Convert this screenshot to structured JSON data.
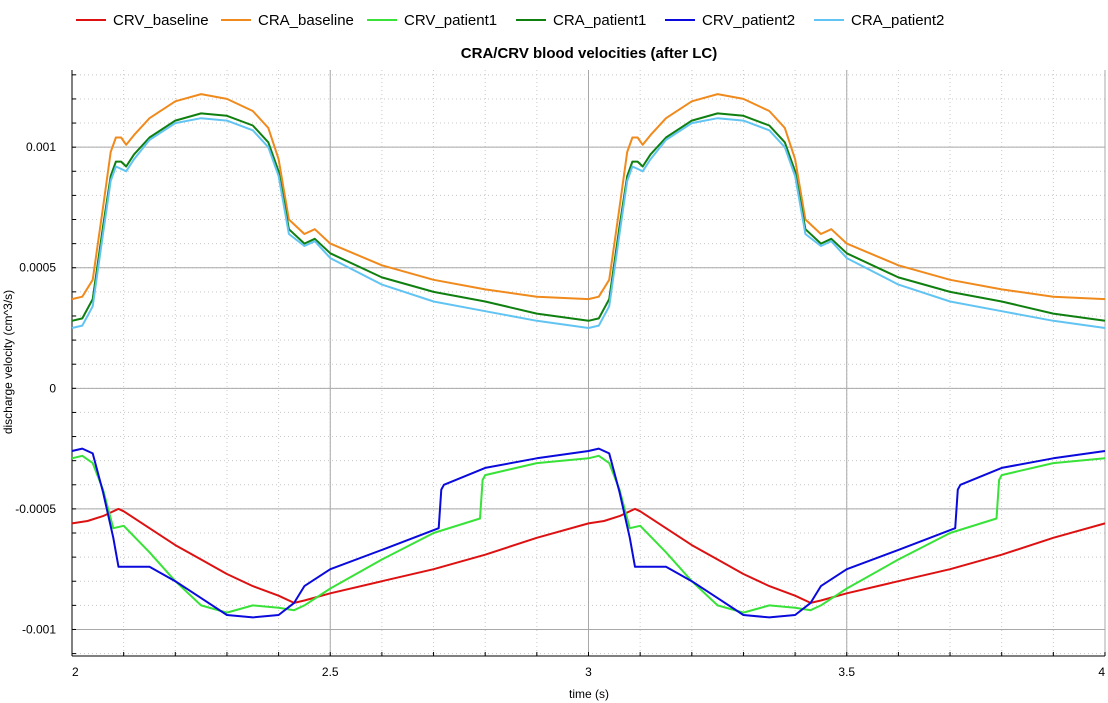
{
  "chart_data": {
    "type": "line",
    "title": "CRA/CRV blood velocities (after LC)",
    "xlabel": "time (s)",
    "ylabel": "discharge velocity (cm^3/s)",
    "xlim": [
      2,
      4
    ],
    "ylim": [
      -0.00111,
      0.00132
    ],
    "x_ticks": [
      2,
      2.5,
      3,
      3.5,
      4
    ],
    "x_tick_labels": [
      "2",
      "2.5",
      "3",
      "3.5",
      "4"
    ],
    "y_ticks": [
      -0.001,
      -0.0005,
      0,
      0.0005,
      0.001
    ],
    "y_tick_labels": [
      "-0.001",
      "-0.0005",
      "0",
      "0.0005",
      "0.001"
    ],
    "grid": true,
    "legend_position": "top",
    "period": 1.0,
    "series": [
      {
        "name": "CRV_baseline",
        "color": "#dd1111",
        "x": [
          2.0,
          2.03,
          2.06,
          2.09,
          2.1,
          2.15,
          2.2,
          2.25,
          2.3,
          2.35,
          2.4,
          2.43,
          2.45,
          2.5,
          2.6,
          2.7,
          2.8,
          2.9,
          3.0
        ],
        "values": [
          -0.00056,
          -0.00055,
          -0.00053,
          -0.0005,
          -0.00051,
          -0.00058,
          -0.00065,
          -0.00071,
          -0.00077,
          -0.00082,
          -0.00086,
          -0.00089,
          -0.00088,
          -0.00085,
          -0.0008,
          -0.00075,
          -0.00069,
          -0.00062,
          -0.00056
        ]
      },
      {
        "name": "CRA_baseline",
        "color": "#f08a1c",
        "x": [
          2.0,
          2.02,
          2.04,
          2.06,
          2.075,
          2.085,
          2.095,
          2.105,
          2.12,
          2.15,
          2.2,
          2.25,
          2.3,
          2.35,
          2.38,
          2.4,
          2.42,
          2.45,
          2.47,
          2.5,
          2.6,
          2.7,
          2.8,
          2.9,
          3.0
        ],
        "values": [
          0.00037,
          0.00038,
          0.00045,
          0.00075,
          0.00098,
          0.00104,
          0.00104,
          0.00101,
          0.00105,
          0.00112,
          0.00119,
          0.00122,
          0.0012,
          0.00115,
          0.00108,
          0.00095,
          0.0007,
          0.00064,
          0.00066,
          0.0006,
          0.00051,
          0.00045,
          0.00041,
          0.00038,
          0.00037
        ]
      },
      {
        "name": "CRV_patient1",
        "color": "#38e238",
        "x": [
          2.0,
          2.02,
          2.04,
          2.06,
          2.08,
          2.1,
          2.15,
          2.2,
          2.25,
          2.3,
          2.35,
          2.4,
          2.43,
          2.45,
          2.5,
          2.6,
          2.7,
          2.79,
          2.795,
          2.8,
          2.9,
          3.0
        ],
        "values": [
          -0.00029,
          -0.00028,
          -0.00031,
          -0.00042,
          -0.00058,
          -0.00057,
          -0.00068,
          -0.0008,
          -0.0009,
          -0.00093,
          -0.0009,
          -0.00091,
          -0.00092,
          -0.0009,
          -0.00083,
          -0.00071,
          -0.0006,
          -0.00054,
          -0.00038,
          -0.00036,
          -0.00031,
          -0.00029
        ]
      },
      {
        "name": "CRA_patient1",
        "color": "#0f7f10",
        "x": [
          2.0,
          2.02,
          2.04,
          2.06,
          2.075,
          2.085,
          2.095,
          2.105,
          2.12,
          2.15,
          2.2,
          2.25,
          2.3,
          2.35,
          2.38,
          2.4,
          2.42,
          2.45,
          2.47,
          2.5,
          2.6,
          2.7,
          2.8,
          2.9,
          3.0
        ],
        "values": [
          0.00028,
          0.00029,
          0.00037,
          0.00067,
          0.00088,
          0.00094,
          0.00094,
          0.00092,
          0.00097,
          0.00104,
          0.00111,
          0.00114,
          0.00113,
          0.00109,
          0.00102,
          0.0009,
          0.00066,
          0.0006,
          0.00062,
          0.00056,
          0.00046,
          0.0004,
          0.00036,
          0.00031,
          0.00028
        ]
      },
      {
        "name": "CRV_patient2",
        "color": "#0a0adc",
        "x": [
          2.0,
          2.02,
          2.04,
          2.06,
          2.08,
          2.09,
          2.1,
          2.15,
          2.2,
          2.25,
          2.3,
          2.35,
          2.4,
          2.43,
          2.45,
          2.5,
          2.6,
          2.71,
          2.715,
          2.72,
          2.8,
          2.9,
          3.0
        ],
        "values": [
          -0.00026,
          -0.00025,
          -0.00027,
          -0.00043,
          -0.00062,
          -0.00074,
          -0.00074,
          -0.00074,
          -0.0008,
          -0.00087,
          -0.00094,
          -0.00095,
          -0.00094,
          -0.00089,
          -0.00082,
          -0.00075,
          -0.00067,
          -0.00058,
          -0.00042,
          -0.0004,
          -0.00033,
          -0.00029,
          -0.00026
        ]
      },
      {
        "name": "CRA_patient2",
        "color": "#62c4f2",
        "x": [
          2.0,
          2.02,
          2.04,
          2.06,
          2.075,
          2.085,
          2.095,
          2.105,
          2.12,
          2.15,
          2.2,
          2.25,
          2.3,
          2.35,
          2.38,
          2.4,
          2.42,
          2.45,
          2.47,
          2.5,
          2.6,
          2.7,
          2.8,
          2.9,
          3.0
        ],
        "values": [
          0.00025,
          0.00026,
          0.00034,
          0.00064,
          0.00086,
          0.00092,
          0.00091,
          0.0009,
          0.00095,
          0.00103,
          0.0011,
          0.00112,
          0.00111,
          0.00107,
          0.001,
          0.00088,
          0.00064,
          0.00059,
          0.00061,
          0.00054,
          0.00043,
          0.00036,
          0.00032,
          0.00028,
          0.00025
        ]
      }
    ]
  }
}
